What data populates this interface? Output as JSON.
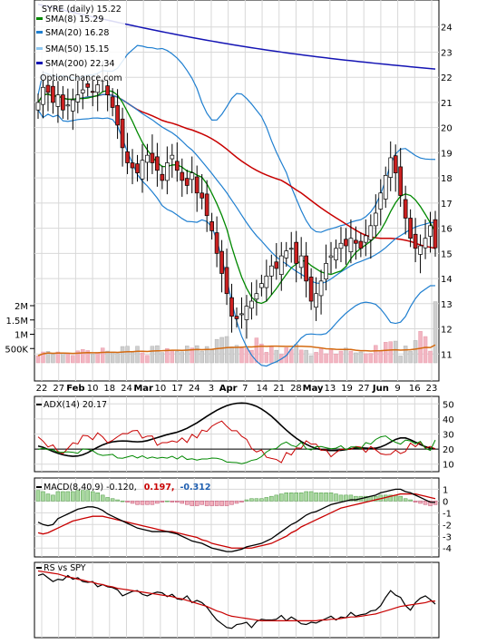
{
  "chart_data": [
    {
      "type": "candlestick",
      "panel": "price",
      "legend": [
        {
          "label": "SYRE (daily) 15.22",
          "color": "#000000"
        },
        {
          "label": "SMA(8) 15.29",
          "color": "#008800"
        },
        {
          "label": "SMA(20) 16.28",
          "color": "#1f7fd0"
        },
        {
          "label": "SMA(50) 15.15",
          "color": "#8fc8f0"
        },
        {
          "label": "SMA(200) 22.34",
          "color": "#1414b4"
        }
      ],
      "watermark": "OptionChance.com",
      "ylim": [
        10,
        25
      ],
      "yticks": [
        "11",
        "12",
        "13",
        "14",
        "15",
        "16",
        "17",
        "18",
        "19",
        "20",
        "21",
        "22",
        "23",
        "24"
      ],
      "xticks": [
        "22",
        "27",
        "Feb",
        "10",
        "18",
        "24",
        "Mar",
        "10",
        "17",
        "24",
        "3",
        "Apr",
        "7",
        "14",
        "21",
        "28",
        "May",
        "13",
        "19",
        "27",
        "Jun",
        "9",
        "16",
        "23"
      ],
      "close": [
        21,
        21.6,
        21.4,
        21,
        21.3,
        20.7,
        20.9,
        21.1,
        21.3,
        21.5,
        21.6,
        21.4,
        21.7,
        21.9,
        21.3,
        20.8,
        20.1,
        19.2,
        18.6,
        18.4,
        18.2,
        18.7,
        18.9,
        18.6,
        18.3,
        17.9,
        18.6,
        18.9,
        18.3,
        17.9,
        17.7,
        18.2,
        17.4,
        17.2,
        16.5,
        15.9,
        15,
        14.2,
        13.4,
        12.5,
        12.4,
        12.6,
        12.9,
        13.1,
        13.4,
        13.8,
        14.1,
        14.5,
        14.4,
        14.9,
        15.1,
        15.2,
        14.6,
        14.9,
        13.9,
        13.1,
        13.4,
        13.9,
        14.6,
        14.9,
        15.2,
        15.4,
        15.3,
        15.6,
        15.4,
        15.2,
        15.7,
        16.1,
        16.6,
        17.4,
        18.1,
        18.8,
        18.2,
        17.3,
        16.4,
        15.6,
        15.2,
        15.3,
        15.6,
        16.1,
        15.22
      ],
      "sma8_value": 15.29,
      "sma20_value": 16.28,
      "sma50_value": 15.15,
      "sma200_value": 22.34
    },
    {
      "type": "bar",
      "panel": "volume",
      "yticks": [
        "500K",
        "1M",
        "1.5M",
        "2M"
      ],
      "ylim": [
        0,
        2500000
      ],
      "values": [
        250000,
        380000,
        400000,
        300000,
        380000,
        330000,
        320000,
        260000,
        420000,
        470000,
        430000,
        300000,
        360000,
        520000,
        410000,
        380000,
        330000,
        570000,
        580000,
        390000,
        580000,
        350000,
        260000,
        580000,
        600000,
        360000,
        500000,
        430000,
        400000,
        390000,
        590000,
        520000,
        600000,
        410000,
        570000,
        450000,
        820000,
        890000,
        920000,
        560000,
        610000,
        520000,
        500000,
        440000,
        870000,
        660000,
        370000,
        560000,
        440000,
        300000,
        530000,
        480000,
        650000,
        450000,
        440000,
        250000,
        370000,
        520000,
        320000,
        470000,
        310000,
        410000,
        520000,
        410000,
        350000,
        380000,
        320000,
        330000,
        610000,
        410000,
        720000,
        740000,
        760000,
        240000,
        590000,
        410000,
        780000,
        1100000,
        920000,
        410000,
        2140000
      ],
      "ma_color": "#d46a10"
    },
    {
      "type": "line",
      "panel": "adx",
      "label": "ADX(14) 20.17",
      "ylim": [
        5,
        55
      ],
      "yticks": [
        "10",
        "20",
        "30",
        "40",
        "50"
      ],
      "series": [
        {
          "color": "#000000",
          "values": [
            22,
            21.2,
            19.8,
            18.4,
            17.2,
            16.2,
            15.6,
            15.2,
            15.4,
            16.2,
            17.6,
            19.4,
            21.2,
            22.8,
            24,
            24.8,
            25.2,
            25.4,
            25.3,
            25,
            24.8,
            25,
            25.6,
            26.6,
            27.6,
            28.6,
            29.6,
            30.4,
            31.2,
            32.4,
            33.8,
            35.6,
            37.4,
            39.6,
            41.8,
            43.8,
            45.8,
            47.4,
            48.8,
            49.8,
            50.4,
            50.6,
            50.4,
            49.6,
            48.4,
            46.6,
            44.4,
            41.8,
            38.8,
            35.6,
            32.6,
            29.8,
            27.2,
            25,
            23.2,
            21.6,
            20.4,
            19.6,
            19.2,
            19,
            19,
            19.2,
            19.6,
            20.2,
            20.6,
            20.8,
            20.6,
            20.4,
            20.6,
            21.4,
            22.8,
            24.6,
            26.4,
            27.4,
            27.4,
            26.2,
            24.6,
            23,
            21.6,
            20.6,
            20.17
          ]
        },
        {
          "color": "#c80000",
          "values": [
            28.1,
            25.3,
            21.4,
            22.8,
            18.4,
            16.9,
            20.5,
            24.2,
            23.4,
            29.1,
            28.8,
            26.2,
            30.8,
            28.1,
            24.2,
            25.8,
            28.2,
            30.3,
            30.2,
            32.1,
            32.4,
            27.3,
            28.6,
            28.7,
            22.5,
            24.3,
            24.3,
            25.4,
            24.6,
            27.4,
            24.4,
            29.8,
            27.4,
            32.6,
            31.7,
            35.2,
            37.1,
            38.6,
            35.1,
            32.2,
            32.2,
            28.5,
            26.5,
            20.4,
            18.1,
            19.4,
            14.6,
            13.8,
            13.1,
            11,
            17.7,
            16.1,
            20.8,
            20.5,
            25.5,
            23.3,
            23.3,
            19.2,
            19.5,
            14.9,
            17.7,
            19.9,
            19.8,
            19.8,
            21.7,
            21.3,
            17.9,
            21.7,
            19.5,
            16.9,
            16.3,
            16.5,
            19.3,
            17,
            18.4,
            24,
            21.6,
            24.6,
            20.6,
            21.8,
            20
          ]
        },
        {
          "color": "#008800",
          "values": [
            19.8,
            20.6,
            19.6,
            19.5,
            17.9,
            17.9,
            18.2,
            17.9,
            17.2,
            20.1,
            19.8,
            18.9,
            16.7,
            15.8,
            16.1,
            16.5,
            14.1,
            13.9,
            14.8,
            15.7,
            14.1,
            15.5,
            13.8,
            14.7,
            13.9,
            14.5,
            14,
            15.2,
            13.4,
            15.4,
            13.1,
            13.6,
            12.7,
            13.4,
            13.4,
            14,
            13.9,
            13.1,
            11.4,
            11.2,
            11,
            10.3,
            11.1,
            12.5,
            13.1,
            15,
            18.1,
            20,
            20.4,
            23.3,
            24.7,
            22.5,
            21.5,
            24.6,
            20.3,
            19.4,
            21.6,
            21.7,
            20.9,
            20.2,
            20.6,
            22.2,
            19.5,
            21.4,
            21.4,
            20.4,
            24.3,
            23.3,
            26.4,
            28.1,
            28.7,
            26.2,
            24.5,
            23.3,
            26,
            25.4,
            23.5,
            25.1,
            20.5,
            19.1,
            26
          ]
        }
      ],
      "reference_line": 20
    },
    {
      "type": "bar+line",
      "panel": "macd",
      "label": "MACD(8,40,9) -0.120,",
      "value2": "0.197,",
      "value3": "-0.312",
      "value2_color": "#c80000",
      "value3_color": "#1f5fb0",
      "ylim": [
        -4.6,
        1.8
      ],
      "yticks": [
        "-4",
        "-3",
        "-2",
        "-1",
        "0",
        "1"
      ],
      "macd": [
        -1.8,
        -2,
        -2.1,
        -2,
        -1.5,
        -1.3,
        -1.1,
        -0.9,
        -0.7,
        -0.6,
        -0.5,
        -0.5,
        -0.6,
        -0.8,
        -1.1,
        -1.3,
        -1.5,
        -1.7,
        -1.9,
        -2.1,
        -2.3,
        -2.4,
        -2.5,
        -2.6,
        -2.6,
        -2.6,
        -2.6,
        -2.7,
        -2.8,
        -3,
        -3.2,
        -3.4,
        -3.5,
        -3.6,
        -3.8,
        -4,
        -4.1,
        -4.2,
        -4.3,
        -4.3,
        -4.2,
        -4.1,
        -3.9,
        -3.8,
        -3.7,
        -3.6,
        -3.4,
        -3.2,
        -2.9,
        -2.6,
        -2.3,
        -2,
        -1.8,
        -1.5,
        -1.2,
        -1,
        -0.9,
        -0.7,
        -0.5,
        -0.3,
        -0.2,
        -0.1,
        0,
        0.1,
        0.1,
        0.2,
        0.3,
        0.4,
        0.5,
        0.7,
        0.8,
        0.9,
        1,
        1,
        0.8,
        0.7,
        0.5,
        0.3,
        0.1,
        -0.1,
        -0.12
      ],
      "signal": [
        -2.7,
        -2.8,
        -2.7,
        -2.5,
        -2.3,
        -2.1,
        -1.9,
        -1.7,
        -1.6,
        -1.5,
        -1.4,
        -1.3,
        -1.3,
        -1.3,
        -1.4,
        -1.5,
        -1.6,
        -1.7,
        -1.8,
        -1.9,
        -2,
        -2.1,
        -2.2,
        -2.3,
        -2.4,
        -2.5,
        -2.6,
        -2.6,
        -2.7,
        -2.8,
        -2.9,
        -3,
        -3.1,
        -3.3,
        -3.4,
        -3.6,
        -3.7,
        -3.8,
        -3.9,
        -4,
        -4,
        -4,
        -4,
        -4,
        -3.9,
        -3.8,
        -3.7,
        -3.6,
        -3.4,
        -3.2,
        -3,
        -2.7,
        -2.5,
        -2.2,
        -2,
        -1.8,
        -1.6,
        -1.4,
        -1.2,
        -1,
        -0.8,
        -0.6,
        -0.5,
        -0.4,
        -0.3,
        -0.2,
        -0.1,
        0,
        0.1,
        0.2,
        0.3,
        0.4,
        0.5,
        0.6,
        0.6,
        0.6,
        0.6,
        0.5,
        0.4,
        0.3,
        0.197
      ],
      "histogram": [
        0.9,
        0.8,
        0.6,
        0.5,
        0.8,
        0.8,
        0.8,
        0.8,
        0.9,
        0.9,
        0.9,
        0.8,
        0.7,
        0.5,
        0.3,
        0.2,
        0.1,
        0,
        -0.1,
        -0.2,
        -0.3,
        -0.3,
        -0.3,
        -0.3,
        -0.2,
        -0.1,
        0,
        -0.1,
        -0.1,
        -0.2,
        -0.3,
        -0.4,
        -0.4,
        -0.3,
        -0.4,
        -0.4,
        -0.4,
        -0.4,
        -0.4,
        -0.3,
        -0.2,
        -0.1,
        0.1,
        0.2,
        0.2,
        0.2,
        0.3,
        0.4,
        0.5,
        0.6,
        0.7,
        0.7,
        0.7,
        0.7,
        0.8,
        0.8,
        0.7,
        0.7,
        0.7,
        0.7,
        0.6,
        0.5,
        0.5,
        0.5,
        0.4,
        0.4,
        0.4,
        0.4,
        0.4,
        0.5,
        0.5,
        0.5,
        0.5,
        0.4,
        0.2,
        0.1,
        -0.1,
        -0.2,
        -0.3,
        -0.4,
        -0.312
      ],
      "macd_color": "#000000",
      "signal_color": "#c80000"
    },
    {
      "type": "line",
      "panel": "rs",
      "label": "RS vs SPY",
      "series": [
        {
          "color": "#000000",
          "values": [
            1.1,
            1.12,
            1.07,
            1.02,
            1.05,
            1.04,
            1.1,
            1.05,
            1.07,
            1.02,
            1.01,
            1.02,
            0.95,
            0.98,
            0.95,
            0.94,
            0.91,
            0.83,
            0.86,
            0.89,
            0.9,
            0.85,
            0.83,
            0.86,
            0.88,
            0.87,
            0.82,
            0.85,
            0.79,
            0.78,
            0.83,
            0.74,
            0.77,
            0.74,
            0.68,
            0.59,
            0.51,
            0.46,
            0.41,
            0.4,
            0.45,
            0.46,
            0.48,
            0.41,
            0.49,
            0.52,
            0.51,
            0.51,
            0.52,
            0.57,
            0.5,
            0.55,
            0.51,
            0.46,
            0.45,
            0.48,
            0.47,
            0.5,
            0.53,
            0.56,
            0.51,
            0.55,
            0.54,
            0.61,
            0.56,
            0.58,
            0.59,
            0.63,
            0.64,
            0.7,
            0.81,
            0.9,
            0.84,
            0.81,
            0.7,
            0.64,
            0.74,
            0.8,
            0.83,
            0.78,
            0.72
          ]
        },
        {
          "color": "#c80000",
          "values": [
            1.16,
            1.15,
            1.14,
            1.13,
            1.12,
            1.1,
            1.08,
            1.07,
            1.05,
            1.04,
            1.02,
            1.01,
            0.99,
            0.98,
            0.96,
            0.95,
            0.93,
            0.92,
            0.91,
            0.9,
            0.89,
            0.88,
            0.87,
            0.86,
            0.85,
            0.84,
            0.83,
            0.82,
            0.8,
            0.79,
            0.77,
            0.75,
            0.73,
            0.71,
            0.69,
            0.66,
            0.63,
            0.61,
            0.58,
            0.56,
            0.55,
            0.54,
            0.53,
            0.52,
            0.51,
            0.5,
            0.5,
            0.5,
            0.5,
            0.5,
            0.5,
            0.5,
            0.5,
            0.5,
            0.5,
            0.5,
            0.5,
            0.51,
            0.51,
            0.52,
            0.52,
            0.53,
            0.54,
            0.55,
            0.55,
            0.56,
            0.57,
            0.58,
            0.59,
            0.61,
            0.63,
            0.65,
            0.67,
            0.69,
            0.7,
            0.71,
            0.72,
            0.73,
            0.74,
            0.76,
            0.76
          ]
        }
      ]
    }
  ]
}
